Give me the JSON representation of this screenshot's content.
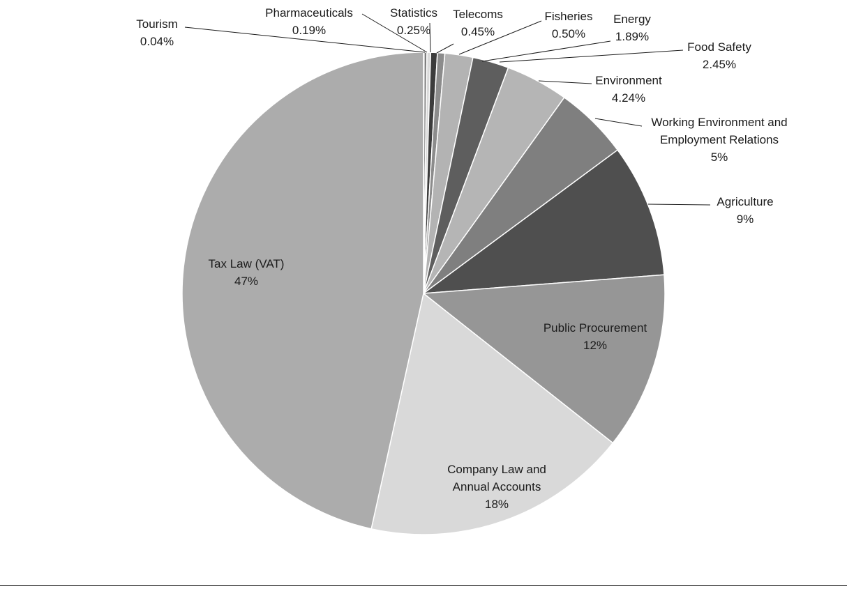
{
  "chart_data": {
    "type": "pie",
    "start_angle_deg": 0,
    "direction": "clockwise",
    "legend": "none",
    "slices": [
      {
        "label": "Tourism",
        "value_label": "0.04%",
        "value": 0.04,
        "color": "#aaaaaa"
      },
      {
        "label": "Pharmaceuticals",
        "value_label": "0.19%",
        "value": 0.19,
        "color": "#7d7d7d"
      },
      {
        "label": "Statistics",
        "value_label": "0.25%",
        "value": 0.25,
        "color": "#d9d9d9"
      },
      {
        "label": "Telecoms",
        "value_label": "0.45%",
        "value": 0.45,
        "color": "#3c3c3c"
      },
      {
        "label": "Fisheries",
        "value_label": "0.50%",
        "value": 0.5,
        "color": "#8c8c8c"
      },
      {
        "label": "Energy",
        "value_label": "1.89%",
        "value": 1.89,
        "color": "#b3b3b3"
      },
      {
        "label": "Food Safety",
        "value_label": "2.45%",
        "value": 2.45,
        "color": "#5e5e5e"
      },
      {
        "label": "Environment",
        "value_label": "4.24%",
        "value": 4.24,
        "color": "#b5b5b5"
      },
      {
        "label": "Working Environment  and\nEmployment Relations",
        "value_label": "5%",
        "value": 5,
        "color": "#7f7f7f"
      },
      {
        "label": "Agriculture",
        "value_label": "9%",
        "value": 9,
        "color": "#4f4f4f"
      },
      {
        "label": "Public Procurement",
        "value_label": "12%",
        "value": 12,
        "color": "#969696"
      },
      {
        "label": "Company Law and\nAnnual Accounts",
        "value_label": "18%",
        "value": 18,
        "color": "#d9d9d9"
      },
      {
        "label": "Tax Law (VAT)",
        "value_label": "47%",
        "value": 47,
        "color": "#acacac"
      }
    ]
  }
}
